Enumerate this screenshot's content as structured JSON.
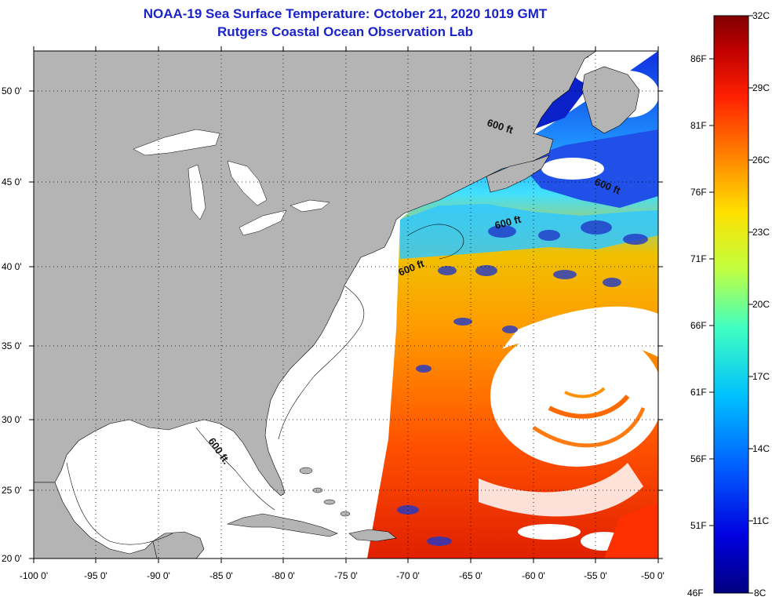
{
  "header": {
    "title": "NOAA-19 Sea Surface Temperature:  October 21, 2020 1019 GMT",
    "subtitle": "Rutgers Coastal Ocean Observation Lab"
  },
  "map": {
    "lat_labels": [
      "20 0'",
      "25 0'",
      "30 0'",
      "35 0'",
      "40 0'",
      "45 0'",
      "50 0'"
    ],
    "lon_labels": [
      "-100 0'",
      "-95 0'",
      "-90 0'",
      "-85 0'",
      "-80 0'",
      "-75 0'",
      "-70 0'",
      "-65 0'",
      "-60 0'",
      "-55 0'",
      "-50 0'"
    ],
    "isobath_label": "600 ft",
    "isobath_label_alt": "600 ft.",
    "colors": {
      "land": "#b4b4b4",
      "ocean_background": "#ffffff",
      "cloud": "#ffffff"
    }
  },
  "colorbar": {
    "fahrenheit_labels": [
      "86F",
      "81F",
      "76F",
      "71F",
      "66F",
      "61F",
      "56F",
      "51F",
      "46F"
    ],
    "celsius_labels": [
      "32C",
      "29C",
      "26C",
      "23C",
      "20C",
      "17C",
      "14C",
      "11C",
      "8C"
    ],
    "colors": [
      "#000080",
      "#0000e0",
      "#0060ff",
      "#00c0ff",
      "#40ffc0",
      "#c0ff40",
      "#ffe000",
      "#ff8000",
      "#ff2000",
      "#c00000",
      "#800000"
    ]
  }
}
